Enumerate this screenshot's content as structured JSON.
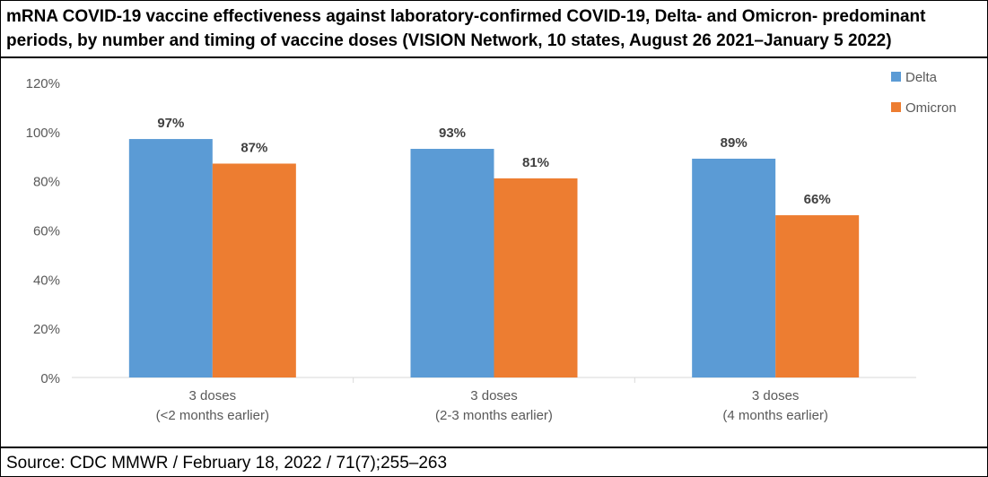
{
  "title": "mRNA COVID-19 vaccine effectiveness against laboratory-confirmed COVID-19, Delta- and Omicron- predominant periods, by number and timing of vaccine doses (VISION Network, 10 states, August 26 2021–January 5 2022)",
  "source": "Source: CDC MMWR / February 18, 2022 / 71(7);255–263",
  "chart_data": {
    "type": "bar",
    "categories": [
      [
        "3 doses",
        "(<2 months earlier)"
      ],
      [
        "3 doses",
        "(2-3 months earlier)"
      ],
      [
        "3 doses",
        "(4 months earlier)"
      ]
    ],
    "series": [
      {
        "name": "Delta",
        "values": [
          97,
          93,
          89
        ],
        "labels": [
          "97%",
          "93%",
          "89%"
        ],
        "color": "#5B9BD5"
      },
      {
        "name": "Omicron",
        "values": [
          87,
          81,
          66
        ],
        "labels": [
          "87%",
          "81%",
          "66%"
        ],
        "color": "#ED7D31"
      }
    ],
    "yticks": [
      "0%",
      "20%",
      "40%",
      "60%",
      "80%",
      "100%",
      "120%"
    ],
    "ylim": [
      0,
      120
    ],
    "ytick_step": 20,
    "grid": false,
    "legend": "top-right",
    "xlabel": "",
    "ylabel": ""
  }
}
